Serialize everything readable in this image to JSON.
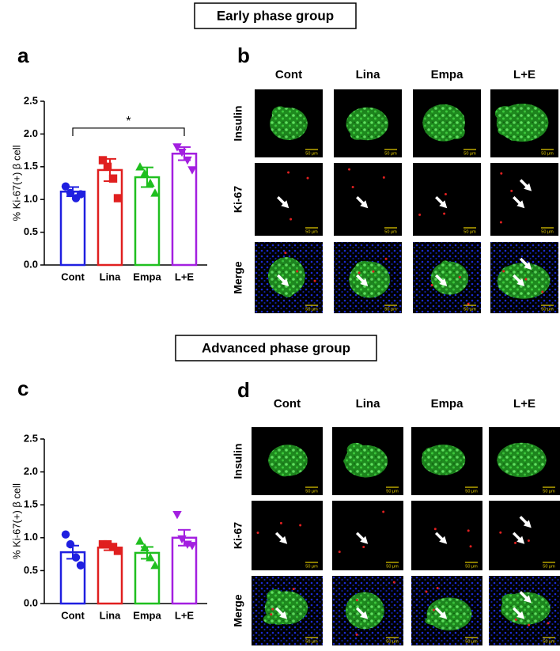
{
  "groups": [
    "Early phase group",
    "Advanced phase group"
  ],
  "chart_data": [
    {
      "type": "bar",
      "panel": "a",
      "y_label": "% Ki-67(+) β cell",
      "categories": [
        "Cont",
        "Lina",
        "Empa",
        "L+E"
      ],
      "values": [
        1.12,
        1.45,
        1.34,
        1.7
      ],
      "errors": [
        0.07,
        0.17,
        0.15,
        0.1
      ],
      "points": [
        [
          1.2,
          1.1,
          1.02,
          1.08
        ],
        [
          1.6,
          1.5,
          1.32,
          1.02
        ],
        [
          1.5,
          1.4,
          1.25,
          1.1
        ],
        [
          1.8,
          1.72,
          1.6,
          1.45
        ]
      ],
      "colors": [
        "#1f1fe0",
        "#e01f1f",
        "#1fbf1f",
        "#a31fe0"
      ],
      "markers": [
        "circle",
        "square",
        "triangle",
        "triangle-down"
      ],
      "significance": [
        {
          "from": 0,
          "to": 3,
          "label": "*"
        }
      ],
      "ylim": [
        0,
        2.5
      ],
      "yticks": [
        {
          "value": 0,
          "label": "0.0"
        },
        {
          "value": 0.5,
          "label": "0.5"
        },
        {
          "value": 1,
          "label": "1.0"
        },
        {
          "value": 1.5,
          "label": "1.5"
        },
        {
          "value": 2,
          "label": "2.0"
        },
        {
          "value": 2.5,
          "label": "2.5"
        }
      ]
    },
    {
      "type": "bar",
      "panel": "c",
      "y_label": "% Ki-67(+) β cell",
      "categories": [
        "Cont",
        "Lina",
        "Empa",
        "L+E"
      ],
      "values": [
        0.78,
        0.85,
        0.77,
        1.0
      ],
      "errors": [
        0.1,
        0.04,
        0.09,
        0.12
      ],
      "points": [
        [
          1.05,
          0.9,
          0.7,
          0.58
        ],
        [
          0.9,
          0.9,
          0.86,
          0.8
        ],
        [
          0.95,
          0.85,
          0.7,
          0.58
        ],
        [
          1.35,
          0.98,
          0.9,
          0.88
        ]
      ],
      "colors": [
        "#1f1fe0",
        "#e01f1f",
        "#1fbf1f",
        "#a31fe0"
      ],
      "markers": [
        "circle",
        "square",
        "triangle",
        "triangle-down"
      ],
      "ylim": [
        0,
        2.5
      ],
      "yticks": [
        {
          "value": 0,
          "label": "0.0"
        },
        {
          "value": 0.5,
          "label": "0.5"
        },
        {
          "value": 1,
          "label": "1.0"
        },
        {
          "value": 1.5,
          "label": "1.5"
        },
        {
          "value": 2,
          "label": "2.0"
        },
        {
          "value": 2.5,
          "label": "2.5"
        }
      ]
    }
  ],
  "image_panels": [
    {
      "panel": "b",
      "columns": [
        "Cont",
        "Lina",
        "Empa",
        "L+E"
      ],
      "rows": [
        "Insulin",
        "Ki-67",
        "Merge"
      ]
    },
    {
      "panel": "d",
      "columns": [
        "Cont",
        "Lina",
        "Empa",
        "L+E"
      ],
      "rows": [
        "Insulin",
        "Ki-67",
        "Merge"
      ]
    }
  ],
  "scale_bar": "50 μm"
}
